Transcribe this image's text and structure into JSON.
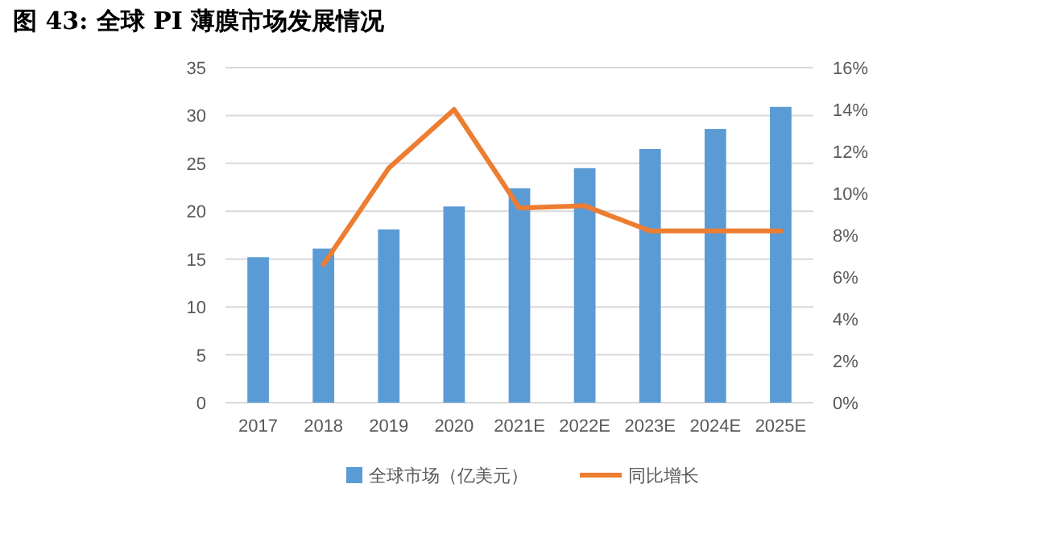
{
  "chart_data": {
    "type": "bar",
    "title": "图 43: 全球 PI 薄膜市场发展情况",
    "categories": [
      "2017",
      "2018",
      "2019",
      "2020",
      "2021E",
      "2022E",
      "2023E",
      "2024E",
      "2025E"
    ],
    "series": [
      {
        "name": "全球市场（亿美元）",
        "color": "#5b9bd5",
        "values": [
          15.2,
          16.1,
          18.1,
          20.5,
          22.4,
          24.5,
          26.5,
          28.6,
          30.9
        ]
      },
      {
        "name": "同比增长",
        "type": "line",
        "axis": "y2",
        "color": "#ed7d31",
        "values": [
          null,
          6.6,
          11.2,
          14.0,
          9.3,
          9.4,
          8.2,
          8.2,
          8.2
        ]
      }
    ],
    "ylim": [
      0,
      35
    ],
    "yticks": [
      0,
      5,
      10,
      15,
      20,
      25,
      30,
      35
    ],
    "y2lim": [
      0,
      16
    ],
    "y2ticks": [
      {
        "value": 0,
        "label": "0%"
      },
      {
        "value": 2,
        "label": "2%"
      },
      {
        "value": 4,
        "label": "4%"
      },
      {
        "value": 6,
        "label": "6%"
      },
      {
        "value": 8,
        "label": "8%"
      },
      {
        "value": 10,
        "label": "10%"
      },
      {
        "value": 12,
        "label": "12%"
      },
      {
        "value": 14,
        "label": "14%"
      },
      {
        "value": 16,
        "label": "16%"
      }
    ],
    "grid": "y",
    "legend": "bottom",
    "marker": "none",
    "line_style": "solid"
  }
}
